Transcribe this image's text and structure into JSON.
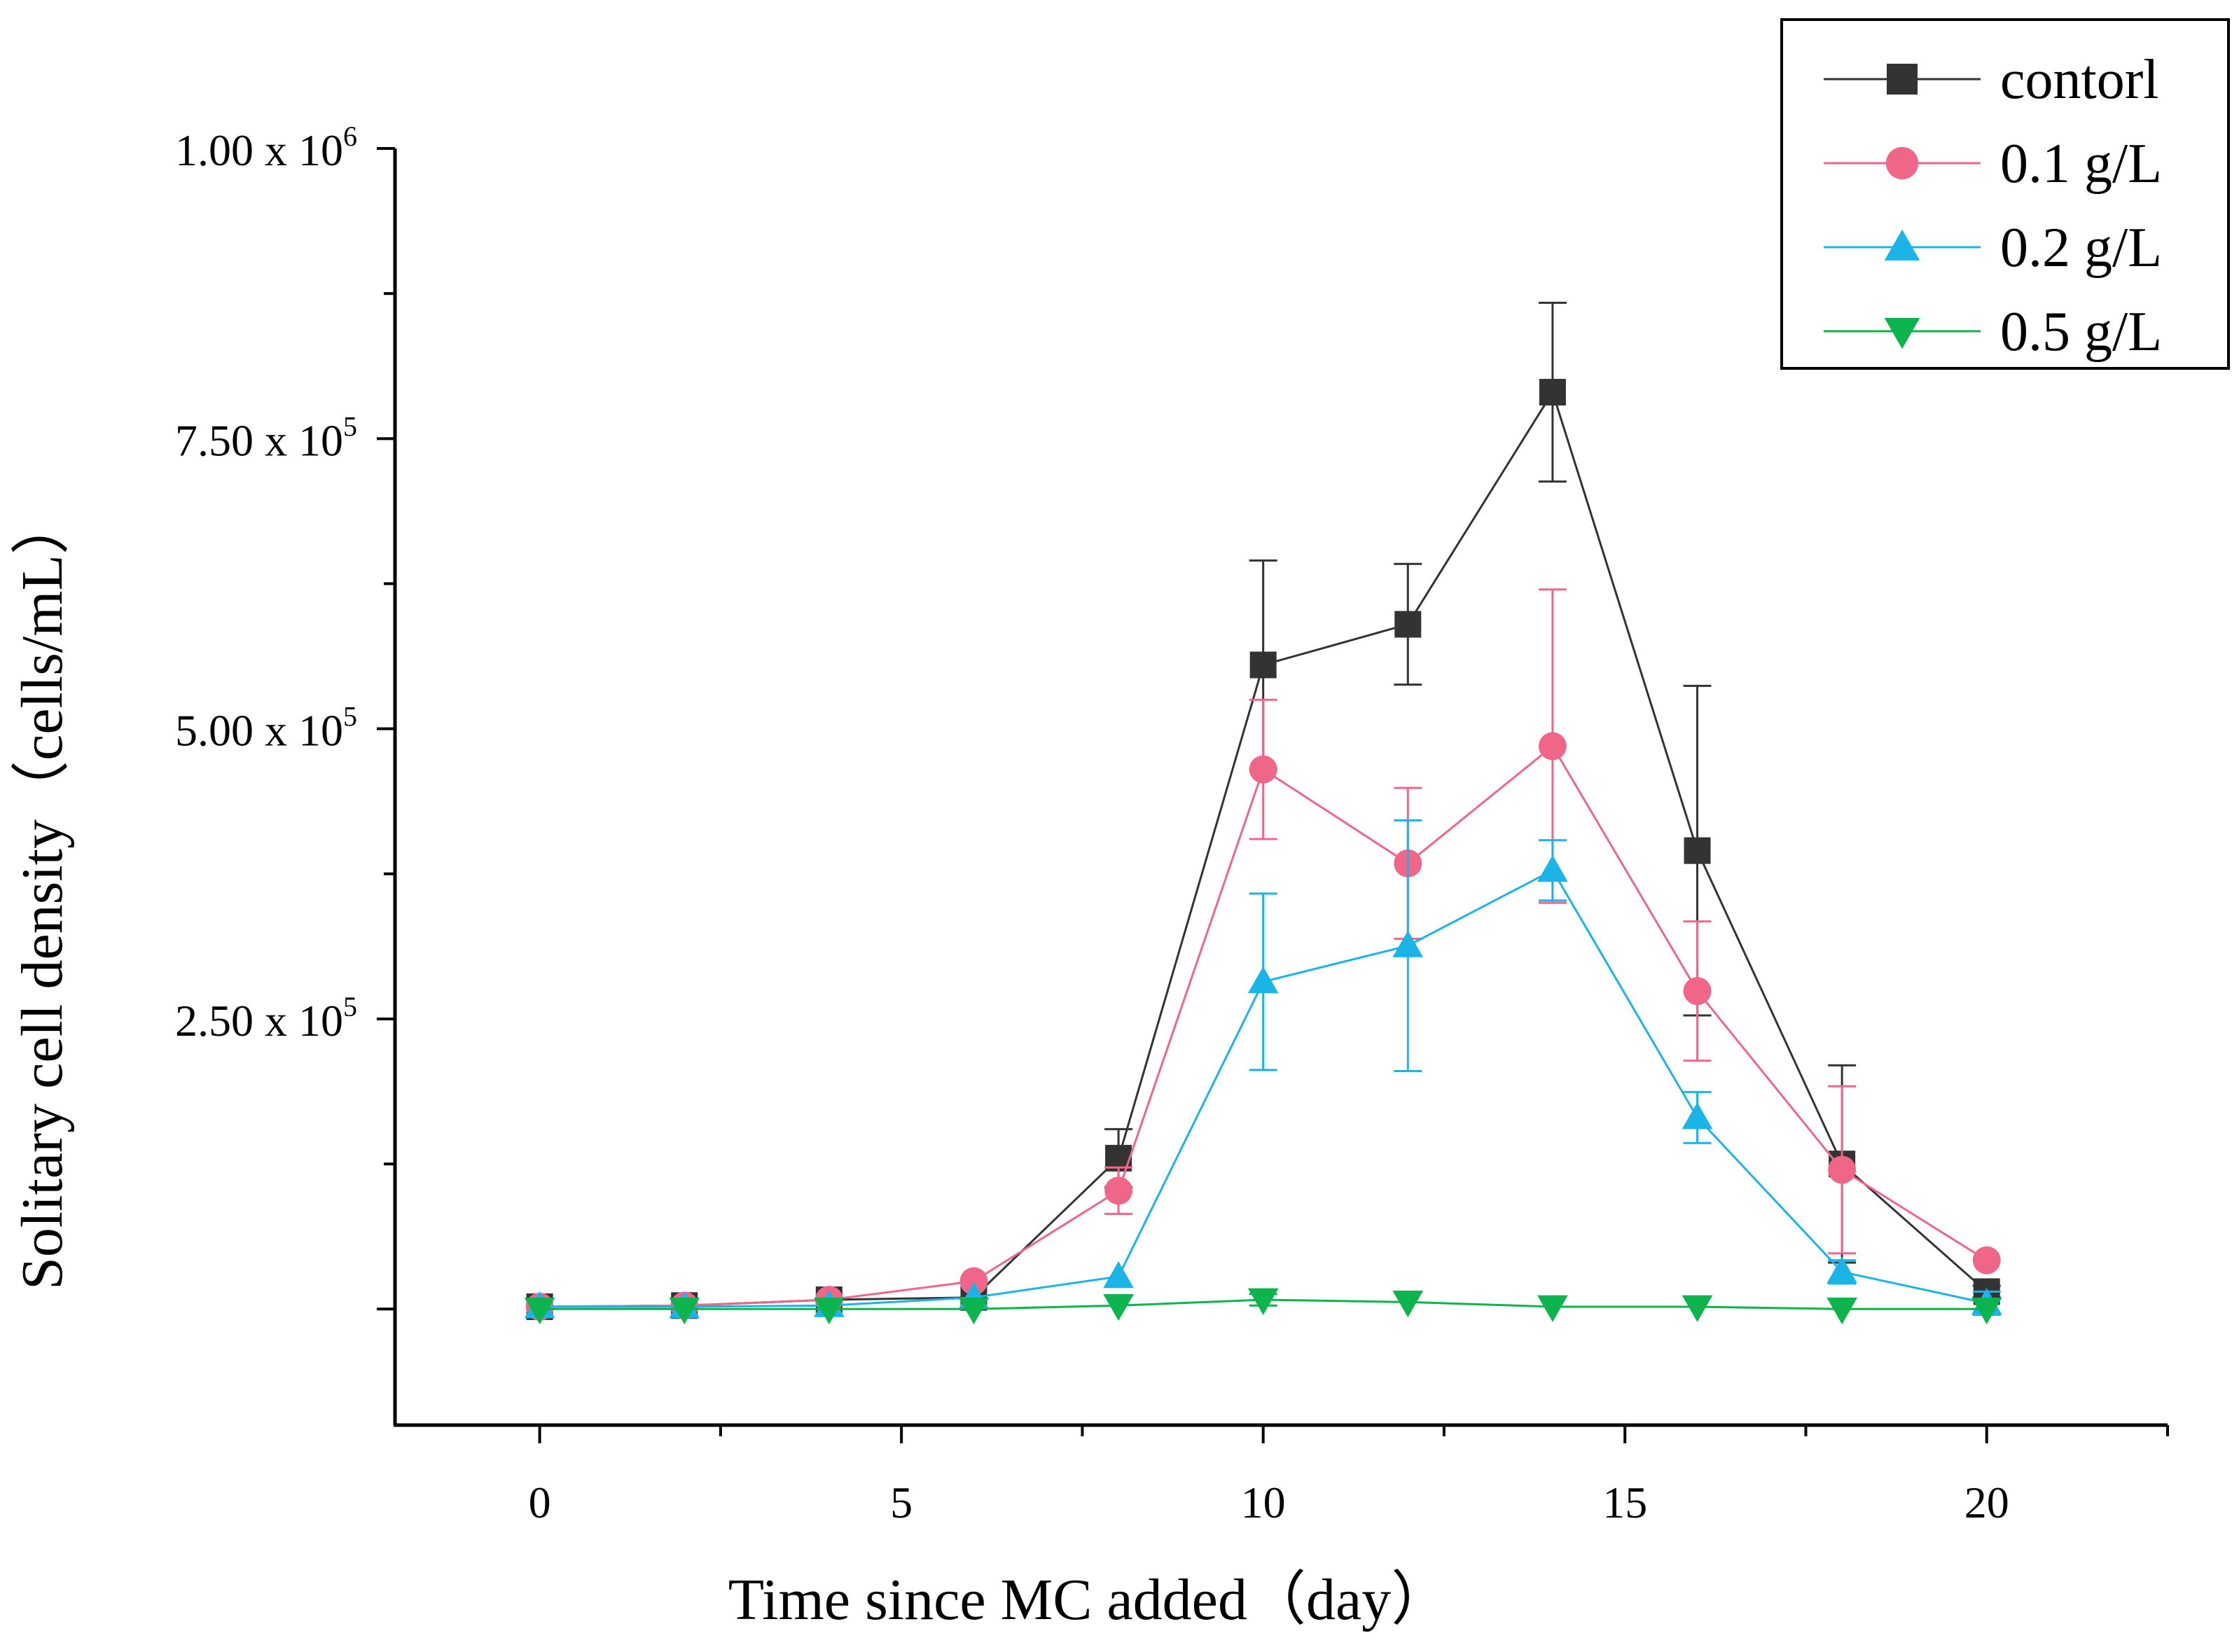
{
  "chart_data": {
    "type": "line",
    "title": "",
    "xlabel": "Time since MC added（day）",
    "ylabel": "Solitary cell density（cells/mL）",
    "xlim": [
      -2,
      22.5
    ],
    "ylim": [
      -100000,
      1000000
    ],
    "x_ticks": [
      0,
      5,
      10,
      15,
      20
    ],
    "y_ticks": [
      {
        "value": 250000,
        "mantissa": "2.50 x 10",
        "exp": "5"
      },
      {
        "value": 500000,
        "mantissa": "5.00 x 10",
        "exp": "5"
      },
      {
        "value": 750000,
        "mantissa": "7.50 x 10",
        "exp": "5"
      },
      {
        "value": 1000000,
        "mantissa": "1.00 x 10",
        "exp": "6"
      }
    ],
    "legend_position": "top-right",
    "x": [
      0,
      2,
      4,
      6,
      8,
      10,
      12,
      14,
      16,
      18,
      20
    ],
    "series": [
      {
        "name": "contorl",
        "color": "#333333",
        "marker": "square",
        "values": [
          2000,
          3000,
          8000,
          10000,
          130000,
          555000,
          590000,
          790000,
          395000,
          125000,
          15000
        ],
        "errors": [
          0,
          0,
          0,
          0,
          25000,
          90000,
          52000,
          77000,
          142000,
          85000,
          5000
        ]
      },
      {
        "name": "0.1 g/L",
        "color": "#f06689",
        "marker": "circle",
        "values": [
          2000,
          3000,
          8000,
          24000,
          102000,
          465000,
          384000,
          485000,
          274000,
          120000,
          42000
        ],
        "errors": [
          0,
          0,
          0,
          0,
          20000,
          60000,
          65000,
          135000,
          60000,
          72000,
          0
        ]
      },
      {
        "name": "0.2 g/L",
        "color": "#1ab4e6",
        "marker": "triangle-up",
        "values": [
          2000,
          2000,
          3000,
          10000,
          28000,
          282000,
          313000,
          378000,
          165000,
          32000,
          5000
        ],
        "errors": [
          0,
          0,
          0,
          0,
          0,
          76000,
          108000,
          26000,
          22000,
          10000,
          10000
        ]
      },
      {
        "name": "0.5 g/L",
        "color": "#0db34d",
        "marker": "triangle-down",
        "values": [
          0,
          0,
          0,
          0,
          3000,
          8000,
          6000,
          2000,
          2000,
          0,
          0
        ],
        "errors": [
          0,
          0,
          0,
          0,
          0,
          5000,
          0,
          0,
          0,
          0,
          0
        ]
      }
    ]
  }
}
